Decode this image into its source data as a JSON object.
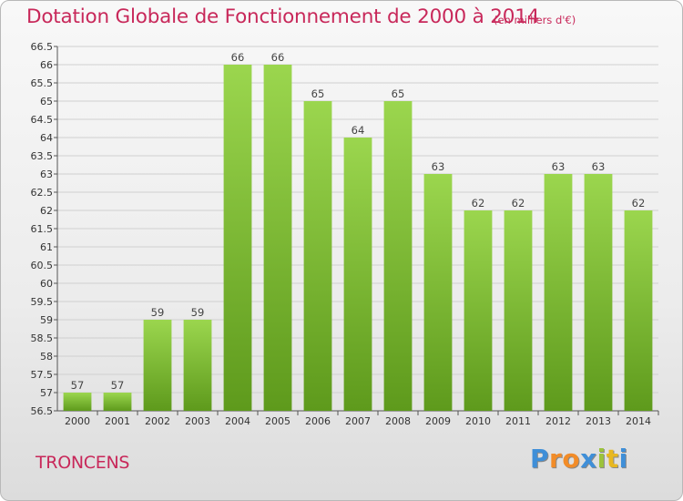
{
  "header": {
    "title": "Dotation Globale de Fonctionnement de 2000 à 2014",
    "subtitle": "(en milliers d'€)"
  },
  "footer": {
    "commune": "TRONCENS",
    "logo_letters": [
      "P",
      "r",
      "o",
      "x",
      "i",
      "t",
      "i"
    ],
    "logo_colors": [
      "#3f8fd8",
      "#f28c28",
      "#f28c28",
      "#3f8fd8",
      "#9cc33b",
      "#e8b820",
      "#3f8fd8"
    ]
  },
  "colors": {
    "accent": "#c8285a",
    "bar_top": "#9bd64e",
    "bar_bottom": "#5e9a1c",
    "grid": "#d0d0d0"
  },
  "chart_data": {
    "type": "bar",
    "title": "Dotation Globale de Fonctionnement de 2000 à 2014",
    "subtitle": "(en milliers d'€)",
    "categories": [
      "2000",
      "2001",
      "2002",
      "2003",
      "2004",
      "2005",
      "2006",
      "2007",
      "2008",
      "2009",
      "2010",
      "2011",
      "2012",
      "2013",
      "2014"
    ],
    "values": [
      57,
      57,
      59,
      59,
      66,
      66,
      65,
      64,
      65,
      63,
      62,
      62,
      63,
      63,
      62
    ],
    "data_labels": [
      "57",
      "57",
      "59",
      "59",
      "66",
      "66",
      "65",
      "64",
      "65",
      "63",
      "62",
      "62",
      "63",
      "63",
      "62"
    ],
    "ylim": [
      56.5,
      66.5
    ],
    "yticks": [
      "56.5",
      "57",
      "57.5",
      "58",
      "58.5",
      "59",
      "59.5",
      "60",
      "60.5",
      "61",
      "61.5",
      "62",
      "62.5",
      "63",
      "63.5",
      "64",
      "64.5",
      "65",
      "65.5",
      "66",
      "66.5"
    ],
    "xlabel": "",
    "ylabel": "",
    "grid": true,
    "legend": "none"
  }
}
